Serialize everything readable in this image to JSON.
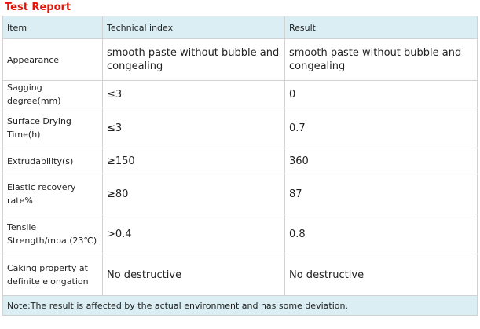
{
  "title": "Test Report",
  "colors": {
    "title": "#e8140c",
    "header_background": "#daeef3",
    "border": "#d2d2d2"
  },
  "table": {
    "headers": [
      "Item",
      "Technical index",
      "Result"
    ],
    "rows": [
      {
        "item": "Appearance",
        "index": "smooth paste without bubble and congealing",
        "result": "smooth paste without bubble and congealing"
      },
      {
        "item": "Sagging degree(mm)",
        "index": "≤3",
        "result": "0"
      },
      {
        "item": "Surface Drying Time(h)",
        "index": "≤3",
        "result": "0.7"
      },
      {
        "item": "Extrudability(s)",
        "index": "≥150",
        "result": "360"
      },
      {
        "item": "Elastic recovery rate%",
        "index": "≥80",
        "result": "87"
      },
      {
        "item": "Tensile Strength/mpa (23℃)",
        "index": ">0.4",
        "result": "0.8"
      },
      {
        "item": "Caking property at definite elongation",
        "index": "No destructive",
        "result": "No destructive"
      }
    ],
    "note": "Note:The result is affected by the actual environment and has some deviation."
  }
}
